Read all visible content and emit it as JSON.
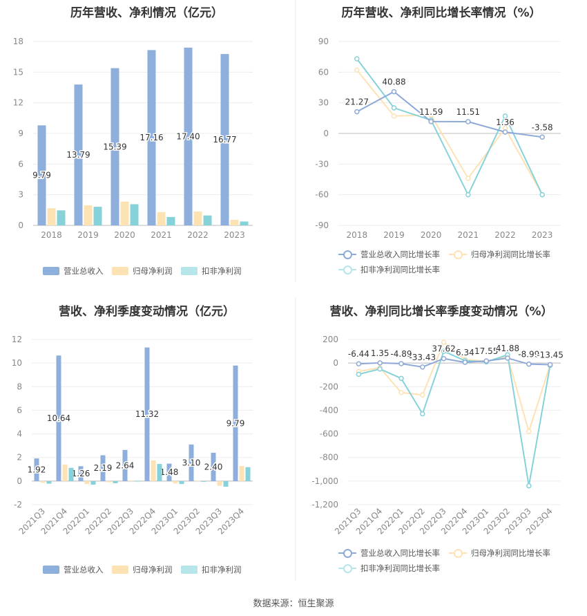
{
  "source_note": "数据来源：恒生聚源",
  "colors": {
    "revenue": "#8eaedb",
    "parent_net": "#fde2b4",
    "deducted_net": "#86d2d8",
    "revenue_line": "#8ea9d8",
    "parent_line": "#fde2b4",
    "deducted_line": "#86d2d8",
    "grid": "#ececec",
    "axis_text": "#888888"
  },
  "chart_data": [
    {
      "type": "bar",
      "title": "历年营收、净利情况（亿元）",
      "categories": [
        "2018",
        "2019",
        "2020",
        "2021",
        "2022",
        "2023"
      ],
      "ylim": [
        0,
        18
      ],
      "yticks": [
        0,
        3,
        6,
        9,
        12,
        15,
        18
      ],
      "grid": true,
      "legend_position": "bottom",
      "series": [
        {
          "name": "营业总收入",
          "color_key": "revenue",
          "values": [
            9.79,
            13.79,
            15.39,
            17.16,
            17.4,
            16.77
          ],
          "labels": [
            "9.79",
            "13.79",
            "15.39",
            "17.16",
            "17.40",
            "16.77"
          ]
        },
        {
          "name": "归母净利润",
          "color_key": "parent_net",
          "values": [
            1.68,
            1.97,
            2.33,
            1.3,
            1.36,
            0.55
          ]
        },
        {
          "name": "扣非净利润",
          "color_key": "deducted_net",
          "values": [
            1.47,
            1.82,
            2.07,
            0.82,
            0.97,
            0.38
          ]
        }
      ]
    },
    {
      "type": "line",
      "title": "历年营收、净利同比增长率情况（%）",
      "categories": [
        "2018",
        "2019",
        "2020",
        "2021",
        "2022",
        "2023"
      ],
      "ylim": [
        -90,
        90
      ],
      "yticks": [
        -90,
        -60,
        -30,
        0,
        30,
        60,
        90
      ],
      "grid": true,
      "legend_position": "bottom",
      "series": [
        {
          "name": "营业总收入同比增长率",
          "color_key": "revenue_line",
          "values": [
            21.27,
            40.88,
            11.59,
            11.51,
            1.36,
            -3.58
          ],
          "labels": [
            "21.27",
            "40.88",
            "11.59",
            "11.51",
            "1.36",
            "-3.58"
          ]
        },
        {
          "name": "归母净利润同比增长率",
          "color_key": "parent_line",
          "values": [
            62,
            17,
            18,
            -44,
            5,
            -60
          ]
        },
        {
          "name": "扣非净利润同比增长率",
          "color_key": "deducted_line",
          "values": [
            73,
            25,
            13,
            -60,
            17,
            -60
          ]
        }
      ]
    },
    {
      "type": "bar",
      "title": "营收、净利季度变动情况（亿元）",
      "categories": [
        "2021Q3",
        "2021Q4",
        "2022Q1",
        "2022Q2",
        "2022Q3",
        "2022Q4",
        "2023Q1",
        "2023Q2",
        "2023Q3",
        "2023Q4"
      ],
      "ylim": [
        -2,
        12
      ],
      "yticks": [
        -2,
        0,
        2,
        4,
        6,
        8,
        10,
        12
      ],
      "grid": true,
      "legend_position": "bottom",
      "series": [
        {
          "name": "营业总收入",
          "color_key": "revenue",
          "values": [
            1.92,
            10.64,
            1.26,
            2.19,
            2.64,
            11.32,
            1.48,
            3.1,
            2.4,
            9.79
          ],
          "labels": [
            "1.92",
            "10.64",
            "1.26",
            "2.19",
            "2.64",
            "11.32",
            "1.48",
            "3.10",
            "2.40",
            "9.79"
          ]
        },
        {
          "name": "归母净利润",
          "color_key": "parent_net",
          "values": [
            -0.15,
            1.4,
            -0.25,
            -0.1,
            0.05,
            1.75,
            -0.2,
            0.04,
            -0.4,
            1.28
          ]
        },
        {
          "name": "扣非净利润",
          "color_key": "deducted_net",
          "values": [
            -0.22,
            1.12,
            -0.3,
            -0.18,
            0.02,
            1.45,
            -0.25,
            -0.04,
            -0.48,
            1.18
          ]
        }
      ]
    },
    {
      "type": "line",
      "title": "营收、净利同比增长率季度变动情况（%）",
      "categories": [
        "2021Q3",
        "2021Q4",
        "2022Q1",
        "2022Q2",
        "2022Q3",
        "2022Q4",
        "2023Q1",
        "2023Q2",
        "2023Q3",
        "2023Q4"
      ],
      "ylim": [
        -1200,
        200
      ],
      "yticks": [
        -1200,
        -1000,
        -800,
        -600,
        -400,
        -200,
        0,
        200
      ],
      "ytick_labels": [
        "-1,200",
        "-1,000",
        "-800",
        "-600",
        "-400",
        "-200",
        "0",
        "200"
      ],
      "grid": true,
      "legend_position": "bottom",
      "series": [
        {
          "name": "营业总收入同比增长率",
          "color_key": "revenue_line",
          "values": [
            -6.44,
            1.35,
            -4.89,
            -33.43,
            37.62,
            6.34,
            17.55,
            41.88,
            -8.99,
            -13.45
          ],
          "labels": [
            "-6.44",
            "1.35",
            "-4.89",
            "-33.43",
            "37.62",
            "6.34",
            "17.55",
            "41.88",
            "-8.99",
            "-13.45"
          ]
        },
        {
          "name": "归母净利润同比增长率",
          "color_key": "parent_line",
          "values": [
            -70,
            -40,
            -250,
            -270,
            175,
            30,
            15,
            55,
            -580,
            -15
          ]
        },
        {
          "name": "扣非净利润同比增长率",
          "color_key": "deducted_line",
          "values": [
            -95,
            -50,
            -130,
            -430,
            100,
            20,
            10,
            70,
            -1040,
            -20
          ]
        }
      ]
    }
  ]
}
